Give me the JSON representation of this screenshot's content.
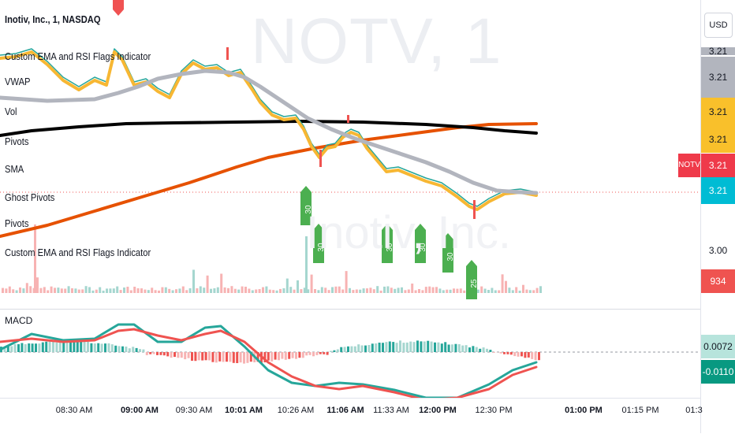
{
  "symbol_line": "Inotiv, Inc., 1, NASDAQ",
  "watermark": "NOTV, 1",
  "watermark_secondary": "Inotiv, Inc.",
  "legend": [
    "Custom EMA and RSI Flags Indicator",
    "VWAP",
    "Vol",
    "Pivots",
    "SMA",
    "Ghost Pivots",
    "Pivots",
    "Custom EMA and RSI Flags Indicator"
  ],
  "macd_label": "MACD",
  "currency_button": "USD",
  "price_scale": {
    "top_partial": "3.21",
    "tags": [
      "3.21",
      "3.21",
      "3.21",
      "3.21",
      "3.21"
    ],
    "ticker": "NOTV",
    "level_300": "3.00",
    "volume": "934",
    "macd_pos": "0.0072",
    "macd_neg": "-0.0110"
  },
  "time_labels": [
    {
      "text": "08:30 AM",
      "bold": false
    },
    {
      "text": "09:00 AM",
      "bold": true
    },
    {
      "text": "09:30 AM",
      "bold": false
    },
    {
      "text": "10:01 AM",
      "bold": true
    },
    {
      "text": "10:26 AM",
      "bold": false
    },
    {
      "text": "11:06 AM",
      "bold": true
    },
    {
      "text": "11:33 AM",
      "bold": false
    },
    {
      "text": "12:00 PM",
      "bold": true
    },
    {
      "text": "12:30 PM",
      "bold": false
    },
    {
      "text": "01:00 PM",
      "bold": true
    },
    {
      "text": "01:15 PM",
      "bold": false
    },
    {
      "text": "01:3",
      "bold": false
    }
  ],
  "flags": [
    {
      "label": "30"
    },
    {
      "label": "30"
    },
    {
      "label": "30"
    },
    {
      "label": "30"
    },
    {
      "label": "30"
    },
    {
      "label": "25"
    }
  ],
  "colors": {
    "up": "#26a69a",
    "down": "#ef5350",
    "ema_fast": "#f7b733",
    "vwap": "#b2b5be",
    "sma_orange": "#e65100",
    "sma_black": "#000000",
    "flag_green": "#4caf50",
    "price_tag_gray": "#b2b5be",
    "price_tag_yellow": "#f9c02b",
    "price_tag_red": "#ef3a4a",
    "price_tag_cyan": "#00bcd4",
    "macd_tag": "#b7e4dc",
    "macd_neg_tag": "#089981"
  }
}
